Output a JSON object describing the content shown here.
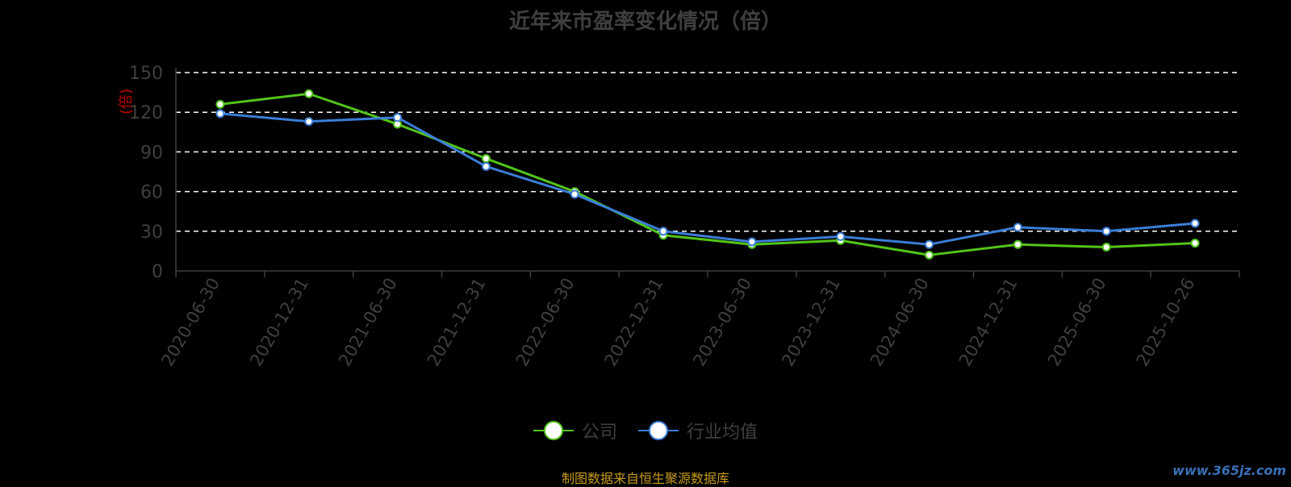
{
  "chart_data": {
    "type": "line",
    "title": "近年来市盈率变化情况（倍）",
    "ylabel": "(倍)",
    "xlabel": "",
    "ylim": [
      0,
      150
    ],
    "yticks": [
      0,
      30,
      60,
      90,
      120,
      150
    ],
    "grid": true,
    "legend_position": "bottom",
    "categories": [
      "2020-06-30",
      "2020-12-31",
      "2021-06-30",
      "2021-12-31",
      "2022-06-30",
      "2022-12-31",
      "2023-06-30",
      "2023-12-31",
      "2024-06-30",
      "2024-12-31",
      "2025-06-30",
      "2025-10-26"
    ],
    "series": [
      {
        "name": "公司",
        "color": "#52c41a",
        "values": [
          126,
          134,
          111,
          85,
          60,
          27,
          20,
          23,
          12,
          20,
          18,
          21
        ]
      },
      {
        "name": "行业均值",
        "color": "#3b7dd8",
        "values": [
          119,
          113,
          116,
          79,
          58,
          30,
          22,
          26,
          20,
          33,
          30,
          36
        ]
      }
    ]
  },
  "source_note": "制图数据来自恒生聚源数据库",
  "watermark": "www.365jz.com"
}
